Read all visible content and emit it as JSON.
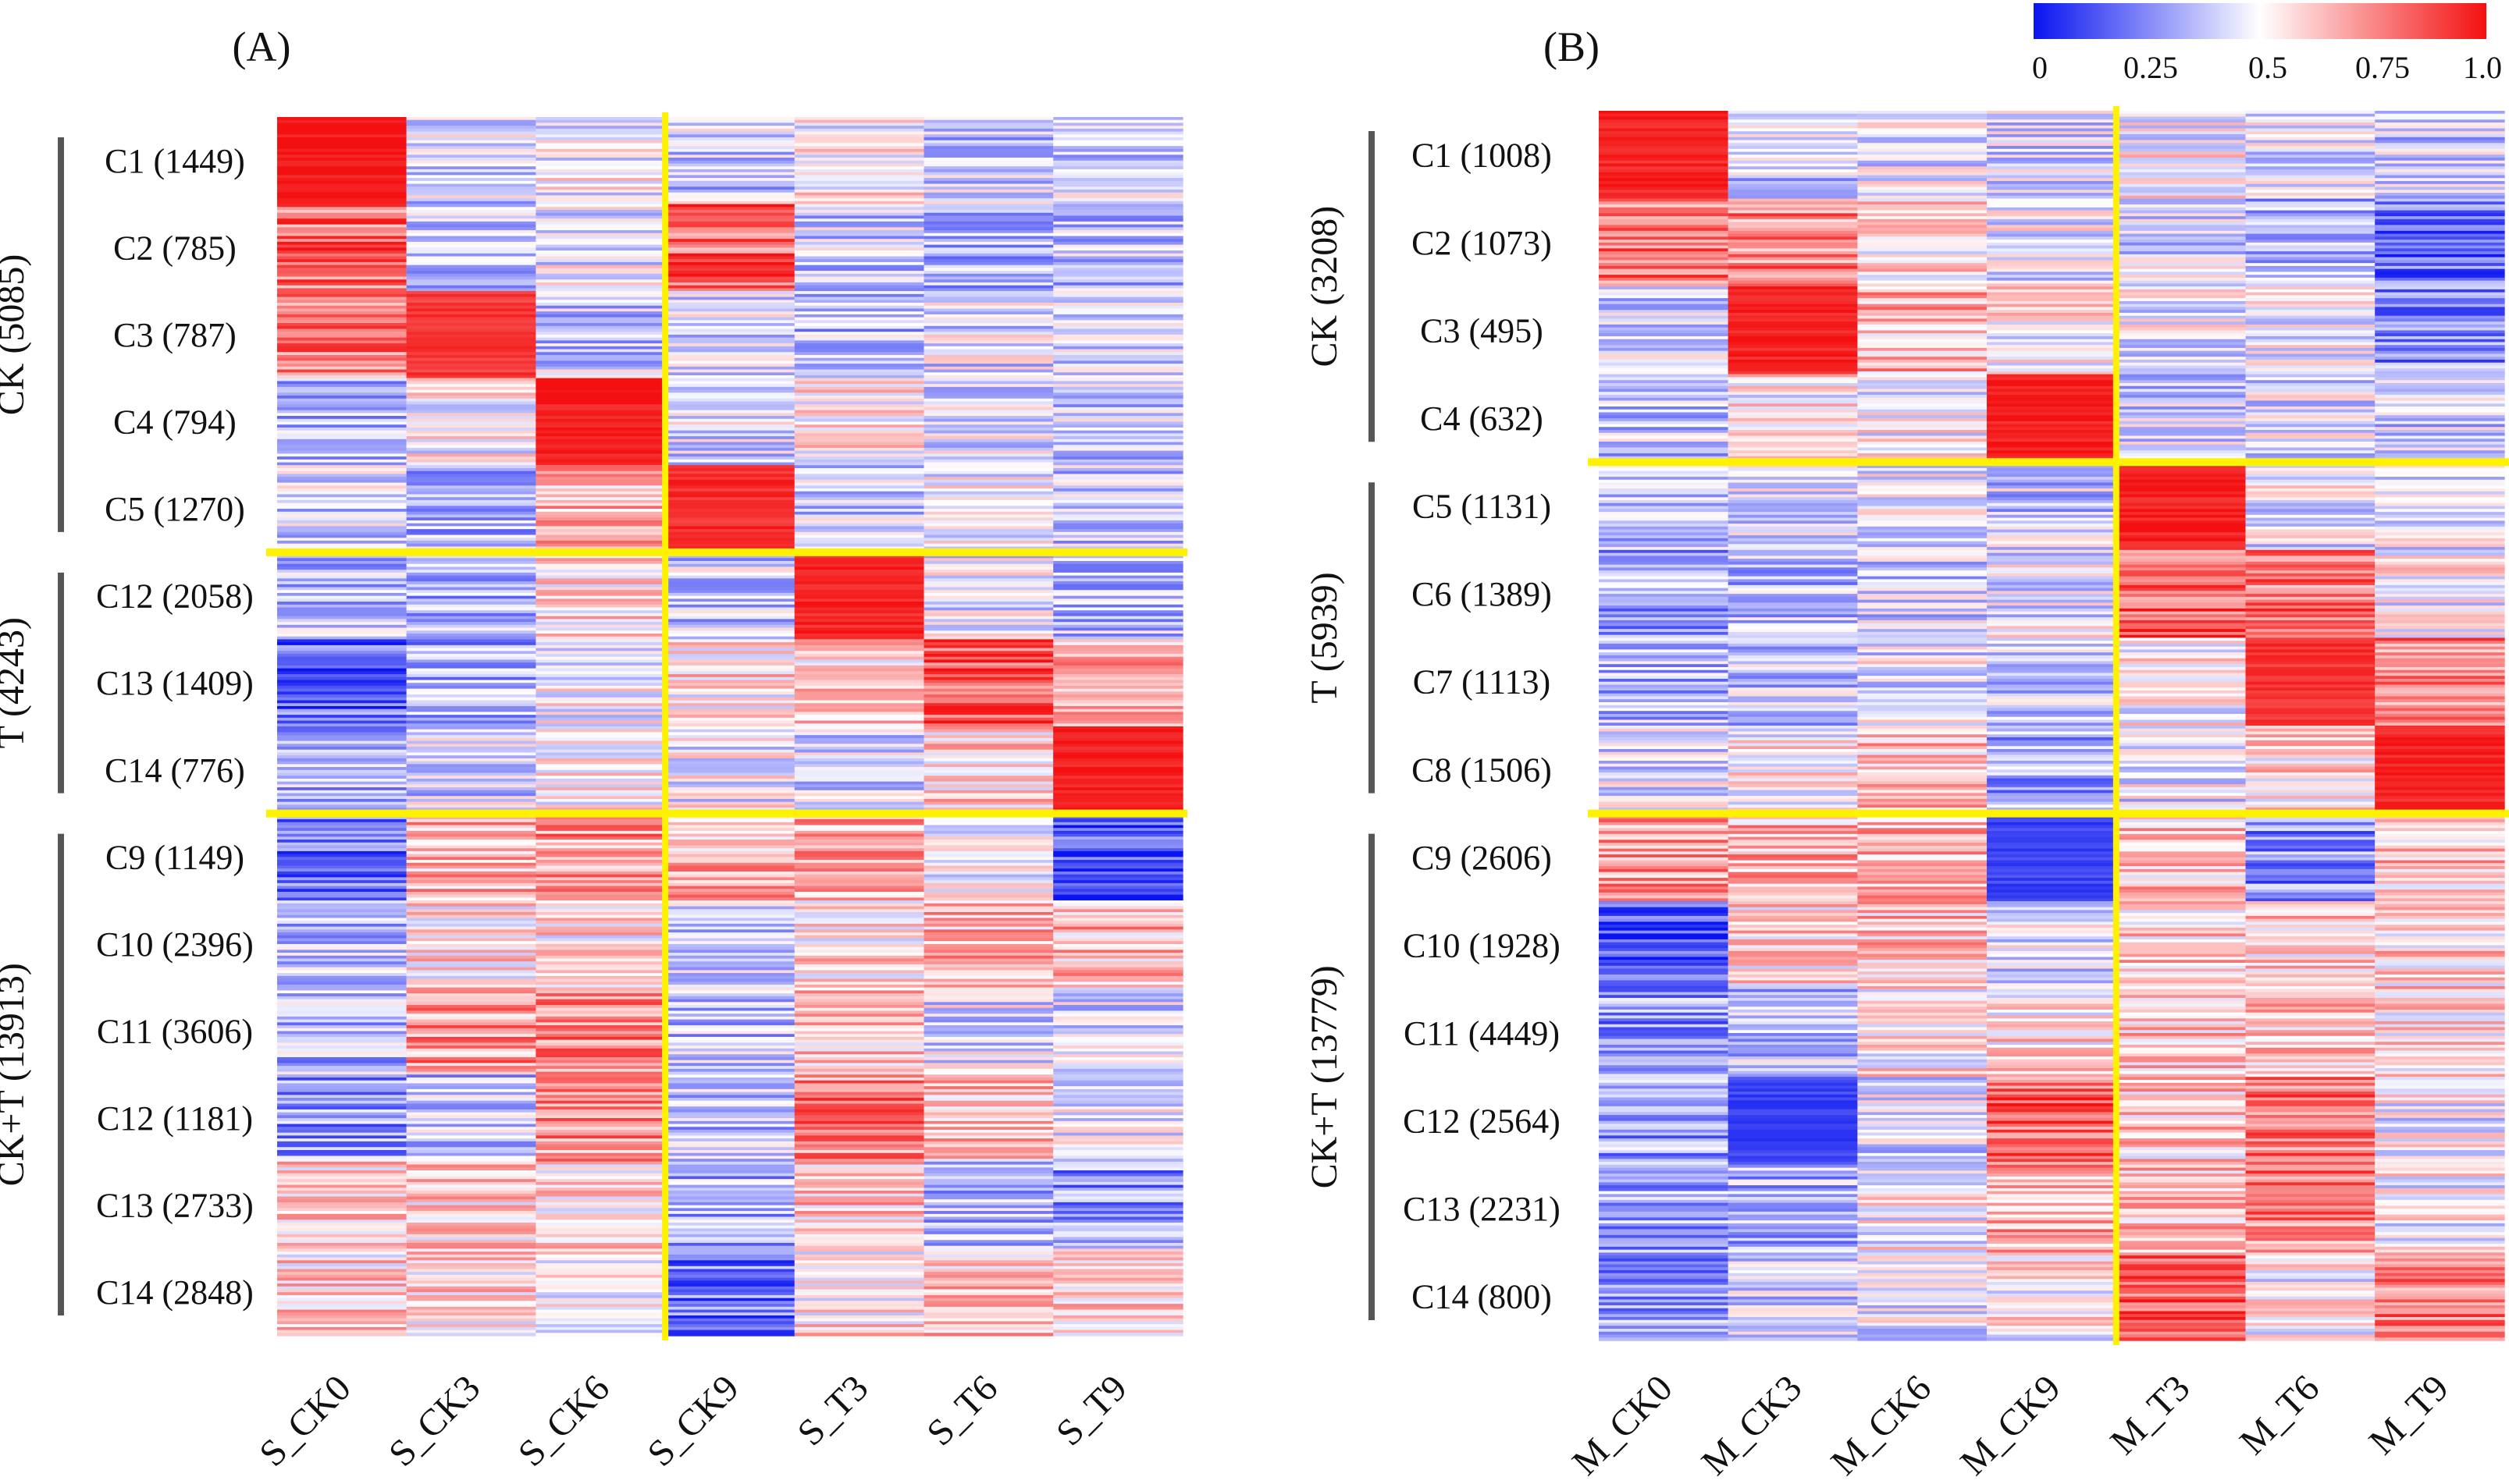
{
  "colors": {
    "low": "#0a14f0",
    "mid": "#ffffff",
    "high": "#f41010",
    "divider": "#fff200",
    "bracket": "#555555"
  },
  "colorbar": {
    "ticks": [
      "0",
      "0.25",
      "0.5",
      "0.75",
      "1.0"
    ]
  },
  "chart_data": [
    {
      "type": "heatmap",
      "title": "(A)",
      "columns": [
        "S_CK0",
        "S_CK3",
        "S_CK6",
        "S_CK9",
        "S_T3",
        "S_T6",
        "S_T9"
      ],
      "value_range": [
        0,
        1
      ],
      "groups": [
        {
          "label": "CK (5085)",
          "clusters": [
            0,
            1,
            2,
            3,
            4
          ]
        },
        {
          "label": "T (4243)",
          "clusters": [
            5,
            6,
            7
          ]
        },
        {
          "label": "CK+T (13913)",
          "clusters": [
            8,
            9,
            10,
            11,
            12,
            13
          ]
        }
      ],
      "clusters": [
        {
          "label": "C1 (1449)",
          "values": [
            0.98,
            0.42,
            0.5,
            0.4,
            0.52,
            0.4,
            0.42
          ]
        },
        {
          "label": "C2 (785)",
          "values": [
            0.8,
            0.38,
            0.46,
            0.82,
            0.4,
            0.36,
            0.38
          ]
        },
        {
          "label": "C3 (787)",
          "values": [
            0.76,
            0.92,
            0.4,
            0.44,
            0.36,
            0.44,
            0.4
          ]
        },
        {
          "label": "C4 (794)",
          "values": [
            0.35,
            0.5,
            0.98,
            0.44,
            0.56,
            0.46,
            0.4
          ]
        },
        {
          "label": "C5 (1270)",
          "values": [
            0.42,
            0.36,
            0.64,
            0.94,
            0.42,
            0.48,
            0.4
          ]
        },
        {
          "label": "C12 (2058)",
          "values": [
            0.36,
            0.34,
            0.56,
            0.4,
            0.96,
            0.46,
            0.38
          ]
        },
        {
          "label": "C13 (1409)",
          "values": [
            0.18,
            0.32,
            0.48,
            0.56,
            0.6,
            0.86,
            0.64
          ]
        },
        {
          "label": "C14 (776)",
          "values": [
            0.36,
            0.42,
            0.54,
            0.48,
            0.4,
            0.58,
            0.98
          ]
        },
        {
          "label": "C9 (1149)",
          "values": [
            0.18,
            0.66,
            0.72,
            0.66,
            0.68,
            0.48,
            0.14
          ]
        },
        {
          "label": "C10 (2396)",
          "values": [
            0.35,
            0.56,
            0.56,
            0.42,
            0.56,
            0.64,
            0.64
          ]
        },
        {
          "label": "C11 (3606)",
          "values": [
            0.36,
            0.72,
            0.74,
            0.38,
            0.62,
            0.44,
            0.42
          ]
        },
        {
          "label": "C12 (1181)",
          "values": [
            0.28,
            0.38,
            0.72,
            0.36,
            0.76,
            0.62,
            0.46
          ]
        },
        {
          "label": "C13 (2733)",
          "values": [
            0.6,
            0.58,
            0.56,
            0.34,
            0.6,
            0.36,
            0.28
          ]
        },
        {
          "label": "C14 (2848)",
          "values": [
            0.58,
            0.56,
            0.48,
            0.22,
            0.56,
            0.6,
            0.6
          ]
        }
      ]
    },
    {
      "type": "heatmap",
      "title": "(B)",
      "columns": [
        "M_CK0",
        "M_CK3",
        "M_CK6",
        "M_CK9",
        "M_T3",
        "M_T6",
        "M_T9"
      ],
      "value_range": [
        0,
        1
      ],
      "groups": [
        {
          "label": "CK (3208)",
          "clusters": [
            0,
            1,
            2,
            3
          ]
        },
        {
          "label": "T (5939)",
          "clusters": [
            4,
            5,
            6,
            7
          ]
        },
        {
          "label": "CK+T (13779)",
          "clusters": [
            8,
            9,
            10,
            11,
            12,
            13
          ]
        }
      ],
      "clusters": [
        {
          "label": "C1 (1008)",
          "values": [
            0.96,
            0.4,
            0.46,
            0.44,
            0.5,
            0.44,
            0.4
          ]
        },
        {
          "label": "C2 (1073)",
          "values": [
            0.78,
            0.76,
            0.56,
            0.46,
            0.42,
            0.36,
            0.2
          ]
        },
        {
          "label": "C3  (495)",
          "values": [
            0.4,
            0.96,
            0.64,
            0.52,
            0.46,
            0.46,
            0.26
          ]
        },
        {
          "label": "C4  (632)",
          "values": [
            0.38,
            0.52,
            0.5,
            0.97,
            0.42,
            0.44,
            0.42
          ]
        },
        {
          "label": "C5 (1131)",
          "values": [
            0.4,
            0.44,
            0.46,
            0.4,
            0.97,
            0.46,
            0.46
          ]
        },
        {
          "label": "C6 (1389)",
          "values": [
            0.32,
            0.36,
            0.42,
            0.46,
            0.82,
            0.8,
            0.5
          ]
        },
        {
          "label": "C7 (1113)",
          "values": [
            0.36,
            0.38,
            0.46,
            0.42,
            0.52,
            0.93,
            0.76
          ]
        },
        {
          "label": "C8 (1506)",
          "values": [
            0.44,
            0.52,
            0.62,
            0.32,
            0.46,
            0.56,
            0.96
          ]
        },
        {
          "label": "C9 (2606)",
          "values": [
            0.72,
            0.66,
            0.66,
            0.1,
            0.62,
            0.26,
            0.62
          ]
        },
        {
          "label": "C10  (1928)",
          "values": [
            0.12,
            0.58,
            0.62,
            0.44,
            0.6,
            0.58,
            0.58
          ]
        },
        {
          "label": "C11 (4449)",
          "values": [
            0.28,
            0.38,
            0.54,
            0.56,
            0.62,
            0.62,
            0.56
          ]
        },
        {
          "label": "C12 (2564)",
          "values": [
            0.3,
            0.1,
            0.44,
            0.8,
            0.6,
            0.78,
            0.48
          ]
        },
        {
          "label": "C13 (2231)",
          "values": [
            0.32,
            0.34,
            0.5,
            0.68,
            0.62,
            0.76,
            0.5
          ]
        },
        {
          "label": "C14 (800)",
          "values": [
            0.3,
            0.4,
            0.44,
            0.52,
            0.82,
            0.5,
            0.76
          ]
        }
      ]
    }
  ]
}
